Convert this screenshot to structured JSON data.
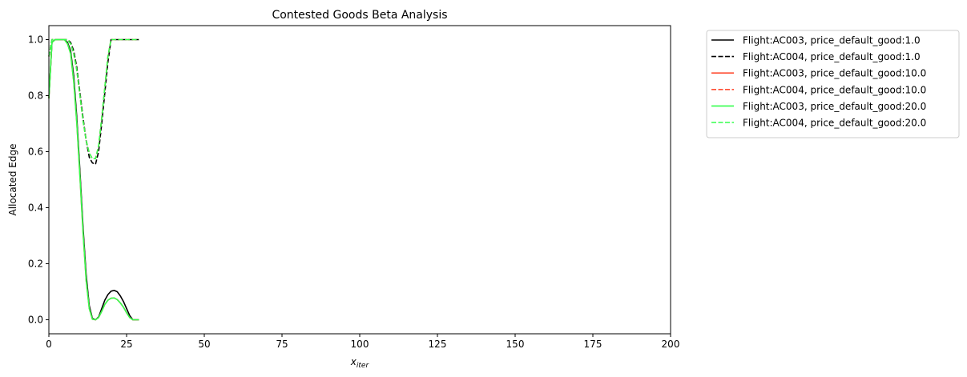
{
  "chart_data": {
    "type": "line",
    "title": "Contested Goods Beta Analysis",
    "xlabel_main": "x",
    "xlabel_sub": "iter",
    "ylabel": "Allocated Edge",
    "xlim": [
      0,
      200
    ],
    "ylim": [
      -0.05,
      1.05
    ],
    "xticks": [
      0,
      25,
      50,
      75,
      100,
      125,
      150,
      175,
      200
    ],
    "yticks": [
      0.0,
      0.2,
      0.4,
      0.6,
      0.8,
      1.0
    ],
    "xtick_labels": [
      "0",
      "25",
      "50",
      "75",
      "100",
      "125",
      "150",
      "175",
      "200"
    ],
    "ytick_labels": [
      "0.0",
      "0.2",
      "0.4",
      "0.6",
      "0.8",
      "1.0"
    ],
    "grid": false,
    "legend_placement": "outside-top-right",
    "series": [
      {
        "name": "Flight:AC003, price_default_good:1.0",
        "color": "#000000",
        "dash": "solid",
        "x": [
          0,
          1,
          2,
          3,
          4,
          5,
          6,
          7,
          8,
          9,
          10,
          11,
          12,
          13,
          14,
          15,
          16,
          17,
          18,
          19,
          20,
          21,
          22,
          23,
          24,
          25,
          26,
          27,
          28,
          29
        ],
        "y": [
          0.79,
          0.99,
          1.0,
          1.0,
          1.0,
          1.0,
          0.99,
          0.96,
          0.87,
          0.72,
          0.53,
          0.33,
          0.16,
          0.05,
          0.005,
          0.0,
          0.01,
          0.04,
          0.07,
          0.09,
          0.102,
          0.105,
          0.1,
          0.085,
          0.065,
          0.04,
          0.015,
          0.0,
          0.0,
          0.0
        ]
      },
      {
        "name": "Flight:AC004, price_default_good:1.0",
        "color": "#000000",
        "dash": "dashed",
        "x": [
          0,
          1,
          2,
          3,
          4,
          5,
          6,
          7,
          8,
          9,
          10,
          11,
          12,
          13,
          14,
          15,
          16,
          17,
          18,
          19,
          20,
          21,
          22,
          23,
          24,
          25,
          26,
          27,
          28,
          29
        ],
        "y": [
          0.94,
          1.0,
          1.0,
          1.0,
          1.0,
          1.0,
          1.0,
          0.99,
          0.96,
          0.9,
          0.81,
          0.72,
          0.64,
          0.58,
          0.56,
          0.555,
          0.6,
          0.7,
          0.81,
          0.92,
          1.0,
          1.0,
          1.0,
          1.0,
          1.0,
          1.0,
          1.0,
          1.0,
          1.0,
          1.0
        ]
      },
      {
        "name": "Flight:AC003, price_default_good:10.0",
        "color": "#ff4d33",
        "dash": "solid",
        "x": [
          0,
          1,
          2,
          3,
          4,
          5,
          6,
          7,
          8,
          9,
          10,
          11,
          12,
          13,
          14,
          15,
          16,
          17,
          18,
          19,
          20,
          21,
          22,
          23,
          24,
          25,
          26,
          27,
          28,
          29
        ],
        "y": [
          0.79,
          0.99,
          1.0,
          1.0,
          1.0,
          1.0,
          0.985,
          0.95,
          0.85,
          0.7,
          0.51,
          0.31,
          0.14,
          0.04,
          0.002,
          0.0,
          0.008,
          0.03,
          0.055,
          0.07,
          0.077,
          0.078,
          0.072,
          0.06,
          0.045,
          0.025,
          0.008,
          0.0,
          0.0,
          0.0
        ]
      },
      {
        "name": "Flight:AC004, price_default_good:10.0",
        "color": "#ff4d33",
        "dash": "dashed",
        "x": [
          0,
          1,
          2,
          3,
          4,
          5,
          6,
          7,
          8,
          9,
          10,
          11,
          12,
          13,
          14,
          15,
          16,
          17,
          18,
          19,
          20,
          21,
          22,
          23,
          24,
          25,
          26,
          27,
          28,
          29
        ],
        "y": [
          0.94,
          1.0,
          1.0,
          1.0,
          1.0,
          1.0,
          1.0,
          0.985,
          0.95,
          0.89,
          0.8,
          0.71,
          0.64,
          0.595,
          0.575,
          0.575,
          0.62,
          0.72,
          0.83,
          0.94,
          1.0,
          1.0,
          1.0,
          1.0,
          1.0,
          1.0,
          1.0,
          1.0,
          1.0,
          1.0
        ]
      },
      {
        "name": "Flight:AC003, price_default_good:20.0",
        "color": "#33ff4d",
        "dash": "solid",
        "x": [
          0,
          1,
          2,
          3,
          4,
          5,
          6,
          7,
          8,
          9,
          10,
          11,
          12,
          13,
          14,
          15,
          16,
          17,
          18,
          19,
          20,
          21,
          22,
          23,
          24,
          25,
          26,
          27,
          28,
          29
        ],
        "y": [
          0.79,
          0.99,
          1.0,
          1.0,
          1.0,
          1.0,
          0.985,
          0.95,
          0.85,
          0.7,
          0.51,
          0.31,
          0.14,
          0.04,
          0.002,
          0.0,
          0.008,
          0.03,
          0.055,
          0.07,
          0.077,
          0.078,
          0.072,
          0.06,
          0.045,
          0.025,
          0.008,
          0.0,
          0.0,
          0.0
        ]
      },
      {
        "name": "Flight:AC004, price_default_good:20.0",
        "color": "#33ff4d",
        "dash": "dashed",
        "x": [
          0,
          1,
          2,
          3,
          4,
          5,
          6,
          7,
          8,
          9,
          10,
          11,
          12,
          13,
          14,
          15,
          16,
          17,
          18,
          19,
          20,
          21,
          22,
          23,
          24,
          25,
          26,
          27,
          28,
          29
        ],
        "y": [
          0.94,
          1.0,
          1.0,
          1.0,
          1.0,
          1.0,
          1.0,
          0.985,
          0.95,
          0.89,
          0.8,
          0.71,
          0.64,
          0.595,
          0.575,
          0.575,
          0.62,
          0.72,
          0.83,
          0.94,
          1.0,
          1.0,
          1.0,
          1.0,
          1.0,
          1.0,
          1.0,
          1.0,
          1.0,
          1.0
        ]
      }
    ]
  }
}
